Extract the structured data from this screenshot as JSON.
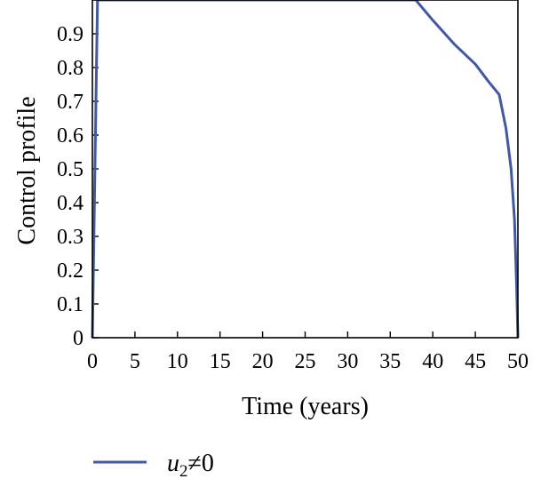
{
  "chart_data": {
    "type": "line",
    "title": "",
    "xlabel": "Time (years)",
    "ylabel": "Control profile",
    "xlim": [
      0,
      50
    ],
    "ylim": [
      0,
      1
    ],
    "x_ticks": [
      0,
      5,
      10,
      15,
      20,
      25,
      30,
      35,
      40,
      45,
      50
    ],
    "y_ticks": [
      0,
      0.1,
      0.2,
      0.3,
      0.4,
      0.5,
      0.6,
      0.7,
      0.8,
      0.9
    ],
    "grid": false,
    "legend_position": "bottom-left",
    "series": [
      {
        "name": "u2≠0",
        "legend_main": "u",
        "legend_sub": "2",
        "legend_rest": "≠0",
        "color": "#3f58a8",
        "x": [
          0,
          0.3,
          0.6,
          5,
          10,
          15,
          20,
          25,
          30,
          35,
          38,
          40,
          42.5,
          45,
          46.5,
          47.8,
          48.6,
          49.2,
          49.6,
          49.85,
          50
        ],
        "y": [
          0,
          0.5,
          1.0,
          1.0,
          1.0,
          1.0,
          1.0,
          1.0,
          1.0,
          1.0,
          1.0,
          0.94,
          0.87,
          0.81,
          0.76,
          0.72,
          0.62,
          0.5,
          0.35,
          0.15,
          0
        ]
      }
    ]
  }
}
